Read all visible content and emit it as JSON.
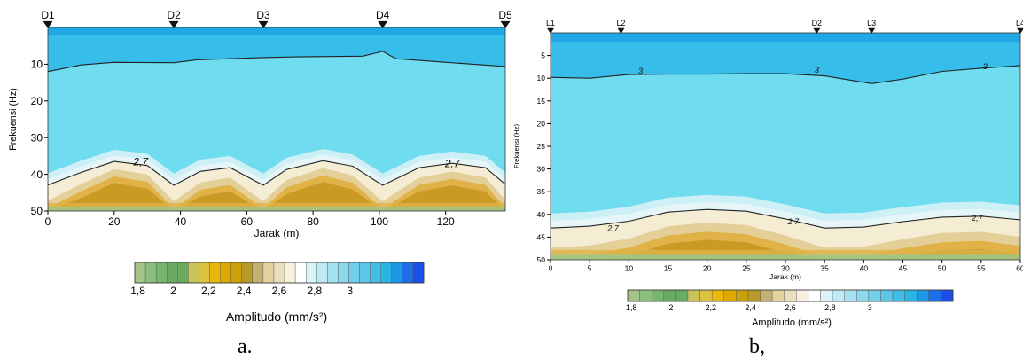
{
  "colors": {
    "deep_blue": "#1fa7e6",
    "mid_blue": "#37bdea",
    "light_blue": "#6fdcf0",
    "pale_blue": "#cdeff6",
    "cream": "#f4ecd3",
    "tan": "#e4cf98",
    "gold": "#e0b247",
    "dark_gold": "#c99a24",
    "green": "#98c98e",
    "contour": "#222222",
    "colorbar": [
      "#a3c58a",
      "#8cbf7e",
      "#78b56f",
      "#6aab63",
      "#6aab63",
      "#c8c45a",
      "#dcc23e",
      "#e8b80d",
      "#e0a800",
      "#c9a10a",
      "#b89a2a",
      "#c2b170",
      "#e2d2a0",
      "#ecdfbd",
      "#f7f0df",
      "#ffffff",
      "#d9f3f7",
      "#bfeaf4",
      "#a6e1f1",
      "#8ed8ee",
      "#74cfeb",
      "#5bc6e8",
      "#42bde5",
      "#2bb3e3",
      "#1e97e7",
      "#1c6fe8",
      "#1b4fe6"
    ]
  },
  "chart_data": [
    {
      "id": "a",
      "type": "heatmap",
      "caption": "a.",
      "xlabel": "Jarak (m)",
      "ylabel": "Frekuensi (Hz)",
      "xlim": [
        0,
        138
      ],
      "ylim": [
        50,
        0
      ],
      "xticks": [
        0,
        20,
        40,
        60,
        80,
        100,
        120
      ],
      "yticks": [
        10,
        20,
        30,
        40,
        50
      ],
      "stations": [
        {
          "name": "D1",
          "x": 0
        },
        {
          "name": "D2",
          "x": 38
        },
        {
          "name": "D3",
          "x": 65
        },
        {
          "name": "D4",
          "x": 101
        },
        {
          "name": "D5",
          "x": 138
        }
      ],
      "colorbar_label": "Amplitudo (mm/s²)",
      "colorbar_ticks": [
        "1,8",
        "2",
        "2,2",
        "2,4",
        "2,6",
        "2,8",
        "3"
      ],
      "contour_labels": [
        {
          "text": "2,7",
          "x": 28,
          "y": 36.5
        },
        {
          "text": "2,7",
          "x": 122,
          "y": 37
        }
      ],
      "contour_3_top": [
        [
          0,
          12
        ],
        [
          10,
          10.2
        ],
        [
          20,
          9.5
        ],
        [
          38,
          9.6
        ],
        [
          45,
          8.8
        ],
        [
          65,
          8.2
        ],
        [
          75,
          8
        ],
        [
          95,
          7.8
        ],
        [
          101,
          6.5
        ],
        [
          105,
          8.5
        ],
        [
          125,
          9.8
        ],
        [
          138,
          10.6
        ]
      ],
      "contour_27": [
        [
          0,
          42.9
        ],
        [
          10,
          39.5
        ],
        [
          20,
          36.5
        ],
        [
          30,
          37.6
        ],
        [
          38,
          43
        ],
        [
          46,
          39.2
        ],
        [
          55,
          38.2
        ],
        [
          65,
          43
        ],
        [
          72,
          38.7
        ],
        [
          83,
          36.3
        ],
        [
          92,
          37.8
        ],
        [
          101,
          43
        ],
        [
          112,
          38.2
        ],
        [
          122,
          37
        ],
        [
          132,
          38.2
        ],
        [
          138,
          42.7
        ]
      ]
    },
    {
      "id": "b",
      "type": "heatmap",
      "caption": "b,",
      "xlabel": "Jarak (m)",
      "ylabel": "Frekuensi (Hz)",
      "xlim": [
        0,
        60
      ],
      "ylim": [
        50,
        0
      ],
      "xticks": [
        0,
        5,
        10,
        15,
        20,
        25,
        30,
        35,
        40,
        45,
        50,
        55,
        60
      ],
      "yticks": [
        5,
        10,
        15,
        20,
        25,
        30,
        35,
        40,
        45,
        50
      ],
      "stations": [
        {
          "name": "L1",
          "x": 0
        },
        {
          "name": "L2",
          "x": 9
        },
        {
          "name": "D2",
          "x": 34
        },
        {
          "name": "L3",
          "x": 41
        },
        {
          "name": "L4",
          "x": 60
        }
      ],
      "colorbar_label": "Amplitudo (mm/s²)",
      "colorbar_ticks": [
        "1,8",
        "2",
        "2,2",
        "2,4",
        "2,6",
        "2,8",
        "3"
      ],
      "contour_labels": [
        {
          "text": "3",
          "x": 11.5,
          "y": 8.4
        },
        {
          "text": "3",
          "x": 34,
          "y": 8.2
        },
        {
          "text": "3",
          "x": 55.5,
          "y": 7.4
        },
        {
          "text": "2,7",
          "x": 8,
          "y": 43
        },
        {
          "text": "2,7",
          "x": 31,
          "y": 41.6
        },
        {
          "text": "2,7",
          "x": 54.5,
          "y": 40.8
        }
      ],
      "contour_3_top": [
        [
          0,
          9.8
        ],
        [
          5,
          10
        ],
        [
          10,
          9.2
        ],
        [
          15,
          9.1
        ],
        [
          20,
          9.1
        ],
        [
          25,
          9
        ],
        [
          30,
          9
        ],
        [
          35,
          9.5
        ],
        [
          41,
          11.2
        ],
        [
          45,
          10.2
        ],
        [
          50,
          8.5
        ],
        [
          55,
          7.8
        ],
        [
          60,
          7.2
        ]
      ],
      "contour_27": [
        [
          0,
          43
        ],
        [
          5,
          42.6
        ],
        [
          10,
          41.5
        ],
        [
          15,
          39.5
        ],
        [
          20,
          38.9
        ],
        [
          25,
          39.3
        ],
        [
          30,
          41
        ],
        [
          35,
          43
        ],
        [
          40,
          42.8
        ],
        [
          45,
          41.6
        ],
        [
          50,
          40.6
        ],
        [
          55,
          40.4
        ],
        [
          60,
          41.2
        ]
      ]
    }
  ]
}
